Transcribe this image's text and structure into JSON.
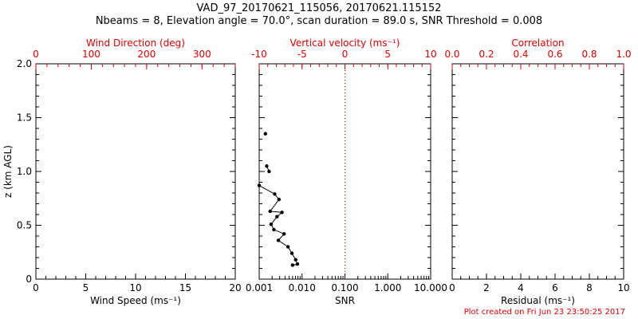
{
  "title_line1": "VAD_97_20170621_115056, 20170621.115152",
  "title_line2": "Nbeams = 8, Elevation angle = 70.0°, scan duration = 89.0 s, SNR Threshold = 0.008",
  "footer": "Plot created on Fri Jun 23 23:50:25 2017",
  "colors": {
    "red": "#dd0000",
    "black": "#000000",
    "background": "#ffffff"
  },
  "chart_data": {
    "type": "scatter",
    "y_axis": {
      "title": "z (km AGL)",
      "min": 0,
      "max": 2,
      "ticks": [
        0,
        0.5,
        1.0,
        1.5,
        2.0
      ],
      "tick_labels": [
        "0",
        "0.5",
        "1.0",
        "1.5",
        "2.0"
      ],
      "minor_step": 0.1
    },
    "panels": [
      {
        "name": "wind-speed",
        "bottom_axis": {
          "title": "Wind Speed (ms⁻¹)",
          "min": 0,
          "max": 20,
          "ticks": [
            0,
            5,
            10,
            15,
            20
          ],
          "tick_labels": [
            "0",
            "5",
            "10",
            "15",
            "20"
          ],
          "minor_step": 1,
          "scale": "linear",
          "color": "#000000"
        },
        "top_axis": {
          "title": "Wind Direction (deg)",
          "min": 0,
          "max": 360,
          "ticks": [
            0,
            100,
            200,
            300
          ],
          "tick_labels": [
            "0",
            "100",
            "200",
            "300"
          ],
          "minor_step": 20,
          "scale": "linear",
          "color": "#dd0000"
        },
        "series": []
      },
      {
        "name": "snr",
        "bottom_axis": {
          "title": "SNR",
          "min": 0.001,
          "max": 10,
          "ticks": [
            0.001,
            0.01,
            0.1,
            1,
            10
          ],
          "tick_labels": [
            "0.001",
            "0.010",
            "0.100",
            "1.000",
            "10.000"
          ],
          "scale": "log",
          "color": "#000000"
        },
        "top_axis": {
          "title": "Vertical velocity (ms⁻¹)",
          "min": -10,
          "max": 10,
          "ticks": [
            -10,
            -5,
            0,
            5,
            10
          ],
          "tick_labels": [
            "-10",
            "-5",
            "0",
            "5",
            "10"
          ],
          "minor_step": 1,
          "scale": "linear",
          "color": "#dd0000"
        },
        "ref_line": {
          "axis": "top",
          "value": 0,
          "style": "dotted",
          "color": "#dd0000"
        },
        "series": [
          {
            "name": "snr-profile-upper",
            "points": [
              [
                0.0014,
                1.35
              ]
            ]
          },
          {
            "name": "snr-profile-mid",
            "points": [
              [
                0.0015,
                1.05
              ],
              [
                0.0017,
                1.0
              ]
            ]
          },
          {
            "name": "snr-profile-lower",
            "points": [
              [
                0.001,
                0.87
              ],
              [
                0.0023,
                0.79
              ],
              [
                0.0029,
                0.74
              ],
              [
                0.0018,
                0.63
              ],
              [
                0.0034,
                0.62
              ],
              [
                0.0026,
                0.58
              ],
              [
                0.0019,
                0.51
              ],
              [
                0.0022,
                0.46
              ],
              [
                0.0038,
                0.42
              ],
              [
                0.0028,
                0.36
              ],
              [
                0.0047,
                0.3
              ],
              [
                0.0058,
                0.24
              ],
              [
                0.0071,
                0.18
              ],
              [
                0.0078,
                0.14
              ],
              [
                0.006,
                0.13
              ]
            ]
          }
        ]
      },
      {
        "name": "residual",
        "bottom_axis": {
          "title": "Residual (ms⁻¹)",
          "min": 0,
          "max": 10,
          "ticks": [
            0,
            2,
            4,
            6,
            8,
            10
          ],
          "tick_labels": [
            "0",
            "2",
            "4",
            "6",
            "8",
            "10"
          ],
          "minor_step": 0.5,
          "scale": "linear",
          "color": "#000000"
        },
        "top_axis": {
          "title": "Correlation",
          "min": 0,
          "max": 1,
          "ticks": [
            0,
            0.2,
            0.4,
            0.6,
            0.8,
            1.0
          ],
          "tick_labels": [
            "0.0",
            "0.2",
            "0.4",
            "0.6",
            "0.8",
            "1.0"
          ],
          "minor_step": 0.05,
          "scale": "linear",
          "color": "#dd0000"
        },
        "series": []
      }
    ]
  }
}
